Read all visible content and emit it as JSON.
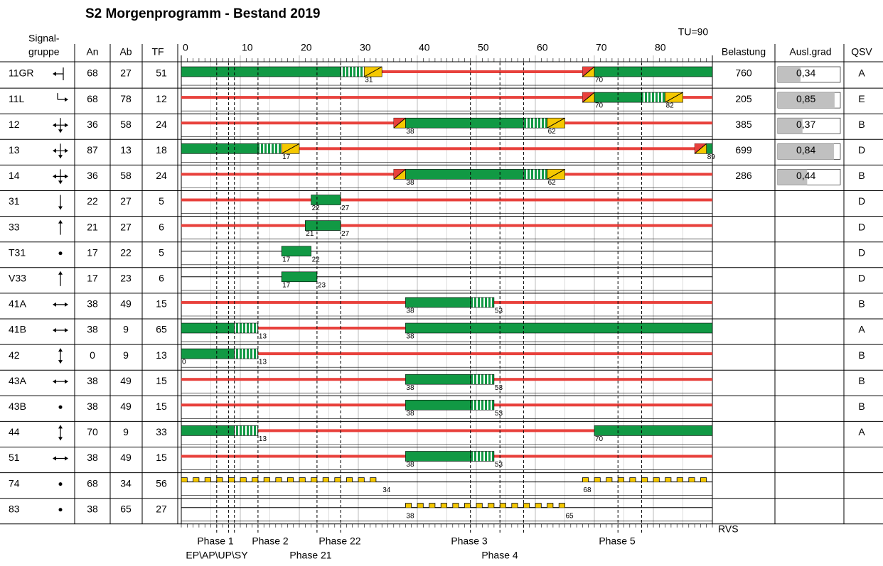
{
  "title": "S2 Morgenprogramm - Bestand 2019",
  "headers": {
    "signal1": "Signal-",
    "signal2": "gruppe",
    "an": "An",
    "ab": "Ab",
    "tf": "TF",
    "tu": "TU=90",
    "bel": "Belastung",
    "ausl": "Ausl.grad",
    "qsv": "QSV"
  },
  "axis": {
    "xlim": [
      0,
      90
    ],
    "xticks": [
      0,
      10,
      20,
      30,
      40,
      50,
      60,
      70,
      80
    ]
  },
  "phase_lines": [
    6,
    8,
    9,
    13,
    23,
    27,
    49,
    54,
    58,
    74,
    78
  ],
  "rvs": "RVS",
  "phases": [
    "Phase 1",
    "EP\\AP\\UP\\SY",
    "Phase 2",
    "Phase 21",
    "Phase 22",
    "Phase 3",
    "Phase 4",
    "Phase 5"
  ],
  "rows": [
    {
      "name": "11GR",
      "an": 68,
      "ab": 27,
      "tf": 51,
      "green": [
        [
          0,
          27
        ],
        [
          70,
          90
        ]
      ],
      "stripe": [
        [
          27,
          31
        ]
      ],
      "yellow": [
        [
          31,
          34
        ]
      ],
      "ry": [
        [
          68,
          70
        ]
      ],
      "red": [
        [
          34,
          68
        ]
      ],
      "labels": [
        31,
        70
      ],
      "bel": 760,
      "ausl": {
        "value": 0.34,
        "label": "0,34"
      },
      "qsv": "A"
    },
    {
      "name": "11L",
      "an": 68,
      "ab": 78,
      "tf": 12,
      "green": [
        [
          70,
          78
        ]
      ],
      "stripe": [
        [
          78,
          82
        ]
      ],
      "yellow": [
        [
          82,
          85
        ]
      ],
      "ry": [
        [
          68,
          70
        ]
      ],
      "red": [
        [
          0,
          68
        ],
        [
          85,
          90
        ]
      ],
      "labels": [
        70,
        82
      ],
      "bel": 205,
      "ausl": {
        "value": 0.85,
        "label": "0,85"
      },
      "qsv": "E"
    },
    {
      "name": "12",
      "an": 36,
      "ab": 58,
      "tf": 24,
      "green": [
        [
          38,
          58
        ]
      ],
      "stripe": [
        [
          58,
          62
        ]
      ],
      "yellow": [
        [
          62,
          65
        ]
      ],
      "ry": [
        [
          36,
          38
        ]
      ],
      "red": [
        [
          0,
          36
        ],
        [
          65,
          90
        ]
      ],
      "labels": [
        38,
        62
      ],
      "bel": 385,
      "ausl": {
        "value": 0.37,
        "label": "0,37"
      },
      "qsv": "B"
    },
    {
      "name": "13",
      "an": 87,
      "ab": 13,
      "tf": 18,
      "green": [
        [
          0,
          13
        ],
        [
          89,
          90
        ]
      ],
      "stripe": [
        [
          13,
          17
        ]
      ],
      "yellow": [
        [
          17,
          20
        ]
      ],
      "ry": [
        [
          87,
          89
        ]
      ],
      "red": [
        [
          20,
          87
        ]
      ],
      "labels": [
        17,
        89
      ],
      "bel": 699,
      "ausl": {
        "value": 0.84,
        "label": "0,84"
      },
      "qsv": "D"
    },
    {
      "name": "14",
      "an": 36,
      "ab": 58,
      "tf": 24,
      "green": [
        [
          38,
          58
        ]
      ],
      "stripe": [
        [
          58,
          62
        ]
      ],
      "yellow": [
        [
          62,
          65
        ]
      ],
      "ry": [
        [
          36,
          38
        ]
      ],
      "red": [
        [
          0,
          36
        ],
        [
          65,
          90
        ]
      ],
      "labels": [
        38,
        62
      ],
      "bel": 286,
      "ausl": {
        "value": 0.44,
        "label": "0,44"
      },
      "qsv": "B"
    },
    {
      "name": "31",
      "an": 22,
      "ab": 27,
      "tf": 5,
      "green": [
        [
          22,
          27
        ]
      ],
      "red": [
        [
          0,
          22
        ],
        [
          27,
          90
        ]
      ],
      "labels": [
        22,
        27
      ],
      "qsv": "D"
    },
    {
      "name": "33",
      "an": 21,
      "ab": 27,
      "tf": 6,
      "green": [
        [
          21,
          27
        ]
      ],
      "red": [
        [
          0,
          21
        ],
        [
          27,
          90
        ]
      ],
      "labels": [
        21,
        27
      ],
      "qsv": "D"
    },
    {
      "name": "T31",
      "an": 17,
      "ab": 22,
      "tf": 5,
      "green": [
        [
          17,
          22
        ]
      ],
      "labels": [
        17,
        22
      ],
      "qsv": "D"
    },
    {
      "name": "V33",
      "an": 17,
      "ab": 23,
      "tf": 6,
      "green": [
        [
          17,
          23
        ]
      ],
      "labels": [
        17,
        23
      ],
      "qsv": "D"
    },
    {
      "name": "41A",
      "an": 38,
      "ab": 49,
      "tf": 15,
      "green": [
        [
          38,
          49
        ]
      ],
      "stripe": [
        [
          49,
          53
        ]
      ],
      "red": [
        [
          0,
          38
        ],
        [
          53,
          90
        ]
      ],
      "labels": [
        38,
        53
      ],
      "qsv": "B"
    },
    {
      "name": "41B",
      "an": 38,
      "ab": 9,
      "tf": 65,
      "green": [
        [
          0,
          9
        ],
        [
          38,
          90
        ]
      ],
      "stripe": [
        [
          9,
          13
        ]
      ],
      "red": [
        [
          13,
          38
        ]
      ],
      "labels": [
        13,
        38
      ],
      "qsv": "A"
    },
    {
      "name": "42",
      "an": 0,
      "ab": 9,
      "tf": 13,
      "green": [
        [
          0,
          9
        ]
      ],
      "stripe": [
        [
          9,
          13
        ]
      ],
      "red": [
        [
          13,
          90
        ]
      ],
      "labels": [
        0,
        13
      ],
      "qsv": "B"
    },
    {
      "name": "43A",
      "an": 38,
      "ab": 49,
      "tf": 15,
      "green": [
        [
          38,
          49
        ]
      ],
      "stripe": [
        [
          49,
          53
        ]
      ],
      "red": [
        [
          0,
          38
        ],
        [
          53,
          90
        ]
      ],
      "labels": [
        38,
        53
      ],
      "qsv": "B"
    },
    {
      "name": "43B",
      "an": 38,
      "ab": 49,
      "tf": 15,
      "green": [
        [
          38,
          49
        ]
      ],
      "stripe": [
        [
          49,
          53
        ]
      ],
      "red": [
        [
          0,
          38
        ],
        [
          53,
          90
        ]
      ],
      "labels": [
        38,
        53
      ],
      "qsv": "B"
    },
    {
      "name": "44",
      "an": 70,
      "ab": 9,
      "tf": 33,
      "green": [
        [
          0,
          9
        ],
        [
          70,
          90
        ]
      ],
      "stripe": [
        [
          9,
          13
        ]
      ],
      "red": [
        [
          13,
          70
        ]
      ],
      "labels": [
        13,
        70
      ],
      "qsv": "A"
    },
    {
      "name": "51",
      "an": 38,
      "ab": 49,
      "tf": 15,
      "green": [
        [
          38,
          49
        ]
      ],
      "stripe": [
        [
          49,
          53
        ]
      ],
      "red": [
        [
          0,
          38
        ],
        [
          53,
          90
        ]
      ],
      "labels": [
        38,
        53
      ]
    },
    {
      "name": "74",
      "an": 68,
      "ab": 34,
      "tf": 56,
      "flash": [
        [
          0,
          34
        ],
        [
          68,
          90
        ]
      ],
      "labels": [
        34,
        68
      ]
    },
    {
      "name": "83",
      "an": 38,
      "ab": 65,
      "tf": 27,
      "flash": [
        [
          38,
          65
        ]
      ],
      "labels": [
        38,
        65
      ]
    }
  ]
}
